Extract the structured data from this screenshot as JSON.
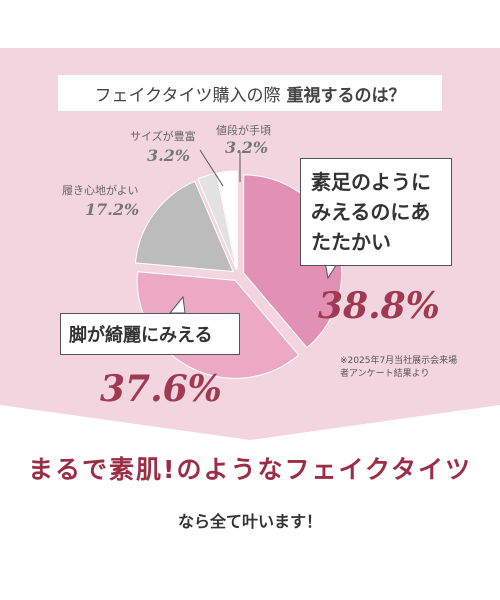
{
  "chart_data": {
    "type": "pie",
    "title": "フェイクタイツ購入の際",
    "title_emphasis": "重視するのは？",
    "categories": [
      "素足のようにみえるのにあたたかい",
      "脚が綺麗にみえる",
      "履き心地がよい",
      "サイズが豊富",
      "値段が手頃"
    ],
    "values": [
      38.8,
      37.6,
      17.2,
      3.2,
      3.2
    ],
    "value_labels": [
      "38.8%",
      "37.6%",
      "17.2%",
      "3.2%",
      "3.2%"
    ],
    "colors": [
      "#e191b3",
      "#eba9c3",
      "#bcbcbc",
      "#e2e2e2",
      "#ffffff"
    ],
    "note": "※2025年7月当社展示会来場者アンケート結果より",
    "headline": "まるで素肌!のようなフェイクタイツ",
    "subline": "なら全て叶います！"
  }
}
